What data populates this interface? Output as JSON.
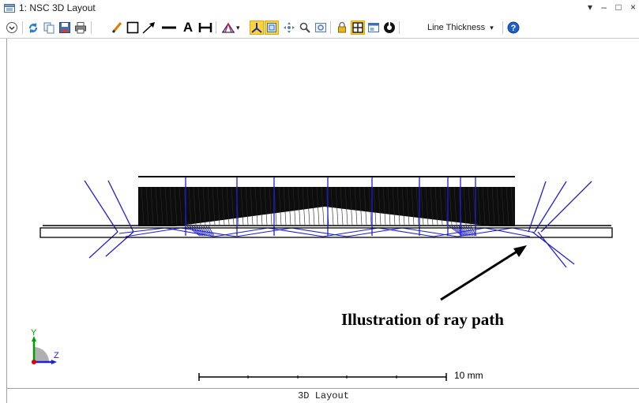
{
  "window": {
    "title": "1: NSC 3D Layout",
    "controls": {
      "dropdown": "▾",
      "minimize": "–",
      "restore": "□",
      "close": "×"
    }
  },
  "toolbar": {
    "text_tool_glyph": "A",
    "line_thickness_label": "Line Thickness",
    "line_thickness_arrow": "▾",
    "icons": [
      "chevron-circle-icon",
      "refresh-icon",
      "copy-icon",
      "save-icon",
      "print-icon",
      "pencil-icon",
      "rectangle-icon",
      "arrow-icon",
      "line-icon",
      "text-icon",
      "dimension-icon",
      "rays-icon",
      "axis-icon",
      "zoom-window-icon",
      "pan-icon",
      "zoom-icon",
      "reset-zoom-icon",
      "lock-icon",
      "layout-icon",
      "window-icon",
      "settings-icon",
      "line-thickness-dropdown",
      "help-icon"
    ],
    "selected_tools": [
      "axis-icon",
      "zoom-window-icon"
    ]
  },
  "canvas": {
    "annotation": "Illustration of ray path",
    "scale_bar_label": "10 mm",
    "axes": {
      "y_label": "Y",
      "z_label": "Z"
    },
    "colors": {
      "rays": "#1f1fd6",
      "geometry": "#000000",
      "annotation": "#000000",
      "axis_y": "#00a000",
      "axis_z": "#1f1fd6",
      "axis_origin": "#e00000"
    }
  },
  "status": {
    "text": "3D Layout"
  },
  "colors": {
    "selected_tool": "#ffd33f",
    "help": "#1f5fbf",
    "refresh": "#2a7fd4"
  }
}
